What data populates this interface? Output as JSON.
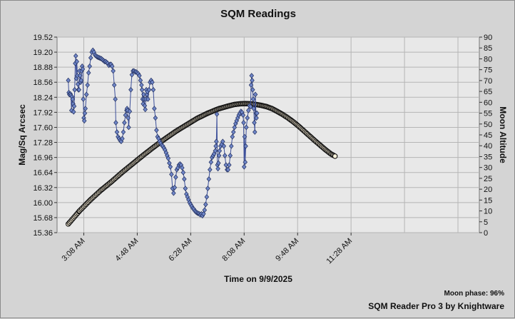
{
  "chart_data": {
    "type": "line",
    "title": "SQM Readings",
    "xlabel": "Time on 9/9/2025",
    "ylabel": "Mag/Sq Arcsec",
    "y2label": "Moon Altitude",
    "x_ticks": [
      "3:08 AM",
      "4:48 AM",
      "6:28 AM",
      "8:08 AM",
      "9:48 AM",
      "11:28 AM"
    ],
    "x_tick_minutes": [
      188,
      288,
      388,
      488,
      588,
      688
    ],
    "xlim_minutes": [
      138,
      928
    ],
    "ylim": [
      15.36,
      19.52
    ],
    "yticks": [
      "19.52",
      "19.20",
      "18.88",
      "18.56",
      "18.24",
      "17.92",
      "17.60",
      "17.28",
      "16.96",
      "16.64",
      "16.32",
      "16.00",
      "15.68",
      "15.36"
    ],
    "y2lim": [
      0,
      90
    ],
    "y2ticks": [
      "90",
      "85",
      "80",
      "75",
      "70",
      "65",
      "60",
      "55",
      "50",
      "45",
      "40",
      "35",
      "30",
      "25",
      "20",
      "15",
      "10",
      "5",
      "0"
    ],
    "grid": true,
    "series": [
      {
        "name": "",
        "axis": "left",
        "color": "#4a5fa8",
        "marker": "diamond",
        "points": [
          [
            159,
            18.6
          ],
          [
            160,
            18.34
          ],
          [
            161,
            18.3
          ],
          [
            163,
            18.31
          ],
          [
            164,
            18.28
          ],
          [
            165,
            17.96
          ],
          [
            166,
            18.25
          ],
          [
            167,
            18.2
          ],
          [
            168,
            18.1
          ],
          [
            169,
            17.93
          ],
          [
            170,
            18.05
          ],
          [
            171,
            18.4
          ],
          [
            172,
            18.96
          ],
          [
            173,
            19.12
          ],
          [
            174,
            18.64
          ],
          [
            175,
            19.0
          ],
          [
            176,
            18.7
          ],
          [
            177,
            18.52
          ],
          [
            178,
            18.4
          ],
          [
            179,
            18.4
          ],
          [
            180,
            18.8
          ],
          [
            181,
            18.7
          ],
          [
            182,
            18.56
          ],
          [
            183,
            18.6
          ],
          [
            184,
            18.8
          ],
          [
            185,
            18.9
          ],
          [
            186,
            18.84
          ],
          [
            187,
            18.2
          ],
          [
            188,
            17.8
          ],
          [
            189,
            17.74
          ],
          [
            190,
            17.9
          ],
          [
            191,
            18.0
          ],
          [
            193,
            18.3
          ],
          [
            195,
            18.5
          ],
          [
            197,
            18.76
          ],
          [
            199,
            18.9
          ],
          [
            201,
            19.08
          ],
          [
            203,
            19.2
          ],
          [
            205,
            19.24
          ],
          [
            207,
            19.2
          ],
          [
            209,
            19.14
          ],
          [
            211,
            19.12
          ],
          [
            213,
            19.1
          ],
          [
            215,
            19.09
          ],
          [
            217,
            19.08
          ],
          [
            219,
            19.07
          ],
          [
            221,
            19.06
          ],
          [
            223,
            19.04
          ],
          [
            225,
            19.02
          ],
          [
            227,
            19.0
          ],
          [
            229,
            19.0
          ],
          [
            231,
            18.98
          ],
          [
            233,
            18.96
          ],
          [
            235,
            18.92
          ],
          [
            237,
            18.94
          ],
          [
            239,
            18.94
          ],
          [
            241,
            18.9
          ],
          [
            243,
            18.8
          ],
          [
            245,
            18.5
          ],
          [
            247,
            18.2
          ],
          [
            248,
            17.7
          ],
          [
            250,
            17.5
          ],
          [
            252,
            17.4
          ],
          [
            254,
            17.36
          ],
          [
            256,
            17.32
          ],
          [
            258,
            17.3
          ],
          [
            260,
            17.36
          ],
          [
            262,
            17.5
          ],
          [
            264,
            17.7
          ],
          [
            266,
            17.86
          ],
          [
            268,
            17.96
          ],
          [
            269,
            18.0
          ],
          [
            270,
            17.96
          ],
          [
            271,
            17.8
          ],
          [
            272,
            17.6
          ],
          [
            274,
            17.94
          ],
          [
            276,
            18.4
          ],
          [
            278,
            18.72
          ],
          [
            280,
            18.8
          ],
          [
            282,
            18.8
          ],
          [
            284,
            18.78
          ],
          [
            286,
            18.78
          ],
          [
            288,
            18.76
          ],
          [
            290,
            18.74
          ],
          [
            292,
            18.7
          ],
          [
            294,
            18.6
          ],
          [
            296,
            18.5
          ],
          [
            297,
            18.4
          ],
          [
            298,
            18.2
          ],
          [
            299,
            18.1
          ],
          [
            300,
            18.3
          ],
          [
            301,
            18.2
          ],
          [
            302,
            18.06
          ],
          [
            303,
            17.98
          ],
          [
            304,
            18.2
          ],
          [
            305,
            18.4
          ],
          [
            306,
            18.3
          ],
          [
            307,
            18.36
          ],
          [
            308,
            18.2
          ],
          [
            310,
            18.4
          ],
          [
            312,
            18.56
          ],
          [
            314,
            18.6
          ],
          [
            316,
            18.56
          ],
          [
            318,
            18.4
          ],
          [
            320,
            18.0
          ],
          [
            322,
            17.8
          ],
          [
            324,
            17.54
          ],
          [
            326,
            17.4
          ],
          [
            328,
            17.36
          ],
          [
            330,
            17.3
          ],
          [
            332,
            17.26
          ],
          [
            334,
            17.22
          ],
          [
            336,
            17.2
          ],
          [
            338,
            17.16
          ],
          [
            340,
            17.12
          ],
          [
            342,
            17.06
          ],
          [
            344,
            17.0
          ],
          [
            346,
            16.94
          ],
          [
            348,
            16.84
          ],
          [
            350,
            16.76
          ],
          [
            352,
            16.6
          ],
          [
            354,
            16.3
          ],
          [
            356,
            16.2
          ],
          [
            358,
            16.32
          ],
          [
            360,
            16.54
          ],
          [
            362,
            16.7
          ],
          [
            364,
            16.74
          ],
          [
            366,
            16.8
          ],
          [
            368,
            16.82
          ],
          [
            370,
            16.8
          ],
          [
            372,
            16.74
          ],
          [
            374,
            16.64
          ],
          [
            376,
            16.5
          ],
          [
            378,
            16.3
          ],
          [
            380,
            16.18
          ],
          [
            382,
            16.12
          ],
          [
            384,
            16.06
          ],
          [
            386,
            16.0
          ],
          [
            388,
            15.96
          ],
          [
            390,
            15.92
          ],
          [
            392,
            15.88
          ],
          [
            394,
            15.86
          ],
          [
            396,
            15.82
          ],
          [
            398,
            15.8
          ],
          [
            400,
            15.78
          ],
          [
            402,
            15.77
          ],
          [
            404,
            15.76
          ],
          [
            406,
            15.74
          ],
          [
            408,
            15.76
          ],
          [
            410,
            15.72
          ],
          [
            412,
            15.76
          ],
          [
            414,
            15.84
          ],
          [
            416,
            15.96
          ],
          [
            418,
            16.12
          ],
          [
            420,
            16.3
          ],
          [
            422,
            16.5
          ],
          [
            424,
            16.7
          ],
          [
            426,
            16.86
          ],
          [
            428,
            16.96
          ],
          [
            430,
            17.0
          ],
          [
            432,
            17.04
          ],
          [
            434,
            17.1
          ],
          [
            435,
            17.2
          ],
          [
            436,
            17.3
          ],
          [
            437,
            17.88
          ],
          [
            438,
            16.8
          ],
          [
            439,
            16.72
          ],
          [
            440,
            16.84
          ],
          [
            441,
            17.0
          ],
          [
            442,
            17.1
          ],
          [
            444,
            17.2
          ],
          [
            446,
            17.24
          ],
          [
            448,
            17.3
          ],
          [
            450,
            17.2
          ],
          [
            452,
            17.0
          ],
          [
            454,
            16.8
          ],
          [
            456,
            16.7
          ],
          [
            458,
            16.7
          ],
          [
            460,
            16.8
          ],
          [
            462,
            17.0
          ],
          [
            464,
            17.2
          ],
          [
            466,
            17.4
          ],
          [
            468,
            17.5
          ],
          [
            470,
            17.6
          ],
          [
            472,
            17.68
          ],
          [
            474,
            17.74
          ],
          [
            476,
            17.8
          ],
          [
            478,
            17.86
          ],
          [
            480,
            17.9
          ],
          [
            482,
            17.94
          ],
          [
            484,
            17.92
          ],
          [
            486,
            17.86
          ],
          [
            487,
            17.7
          ],
          [
            488,
            16.76
          ],
          [
            489,
            17.4
          ],
          [
            490,
            16.86
          ],
          [
            491,
            17.2
          ],
          [
            492,
            17.6
          ],
          [
            494,
            17.8
          ],
          [
            496,
            17.96
          ],
          [
            498,
            18.06
          ],
          [
            500,
            18.04
          ],
          [
            501,
            18.5
          ],
          [
            502,
            18.7
          ],
          [
            503,
            18.6
          ],
          [
            504,
            18.4
          ],
          [
            505,
            18.2
          ],
          [
            506,
            18.0
          ],
          [
            507,
            17.7
          ],
          [
            508,
            17.5
          ],
          [
            509,
            18.3
          ],
          [
            510,
            17.9
          ],
          [
            511,
            17.8
          ],
          [
            512,
            17.9
          ]
        ]
      },
      {
        "name": "",
        "axis": "right",
        "color": "#111111",
        "marker": "circle",
        "points": [
          [
            159,
            4
          ],
          [
            180,
            10
          ],
          [
            200,
            15
          ],
          [
            220,
            19.5
          ],
          [
            240,
            23.5
          ],
          [
            260,
            27.8
          ],
          [
            280,
            31.8
          ],
          [
            300,
            35.8
          ],
          [
            320,
            39.6
          ],
          [
            340,
            43.2
          ],
          [
            360,
            46.6
          ],
          [
            380,
            49.6
          ],
          [
            400,
            52.6
          ],
          [
            420,
            55.0
          ],
          [
            440,
            57.0
          ],
          [
            460,
            58.4
          ],
          [
            470,
            59.0
          ],
          [
            480,
            59.3
          ],
          [
            490,
            59.4
          ],
          [
            500,
            59.3
          ],
          [
            510,
            59.0
          ],
          [
            520,
            58.6
          ],
          [
            530,
            58.0
          ],
          [
            540,
            57.1
          ],
          [
            550,
            55.8
          ],
          [
            560,
            54.4
          ],
          [
            570,
            52.8
          ],
          [
            580,
            51.0
          ],
          [
            590,
            49.0
          ],
          [
            600,
            46.8
          ],
          [
            610,
            44.6
          ],
          [
            620,
            42.4
          ],
          [
            630,
            40.3
          ],
          [
            640,
            38.2
          ],
          [
            650,
            36.3
          ],
          [
            658,
            35.2
          ]
        ]
      }
    ]
  },
  "moon_phase": "Moon phase: 96%",
  "credit": "SQM Reader Pro 3 by Knightware"
}
